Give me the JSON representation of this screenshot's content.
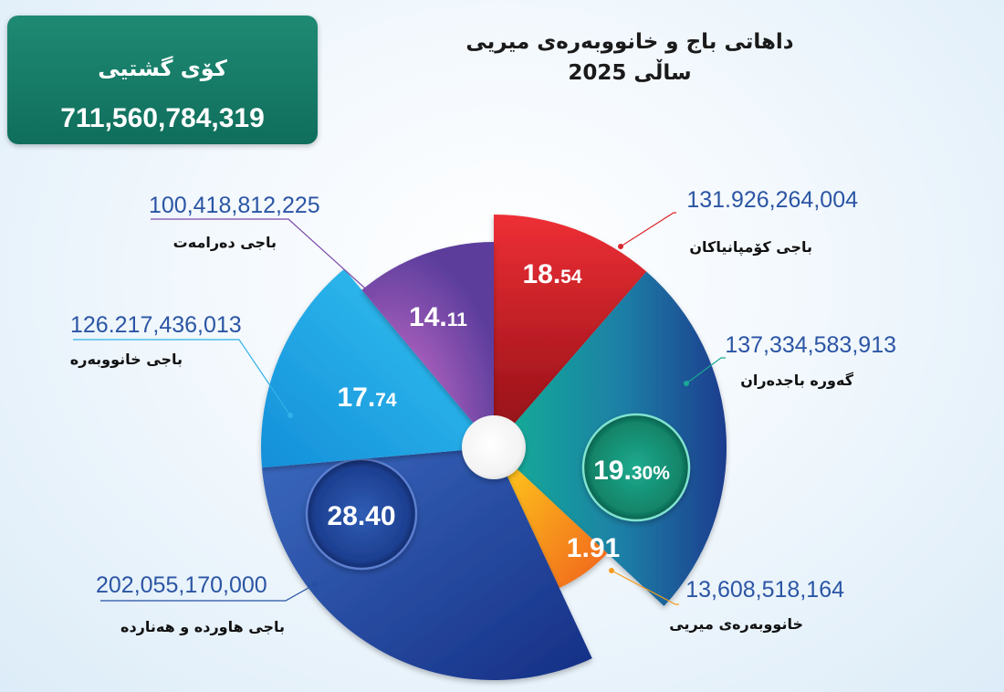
{
  "summary": {
    "total_label": "كۆی گشتیی",
    "total_value": "711,560,784,319"
  },
  "title": {
    "line1": "داهاتی باج و خانووبەرەی میریی",
    "line2": "ساڵی 2025"
  },
  "colors": {
    "total_box": "#137a65",
    "amount_text": "#2b55a4",
    "category_text": "#111111"
  },
  "chart_data": {
    "type": "pie",
    "title": "داهاتی باج و خانووبەرەی میریی ساڵی 2025",
    "total": "711,560,784,319",
    "slices": [
      {
        "key": "company",
        "label": "باجی کۆمپانیاکان",
        "amount": "131.926,264,004",
        "percent": 18.54,
        "percent_main": "18.",
        "percent_small": "54",
        "color": "#d9262c"
      },
      {
        "key": "large",
        "label": "گەورە باجدەران",
        "amount": "137,334,583,913",
        "percent": 19.3,
        "percent_main": "19.",
        "percent_small": "30%",
        "color": "#1aa894"
      },
      {
        "key": "govt",
        "label": "خانووبەرەی میریی",
        "amount": "13,608,518,164",
        "percent": 1.91,
        "percent_main": "1.91",
        "percent_small": "",
        "color": "#f59b1d"
      },
      {
        "key": "import",
        "label": "باجی هاوردە و هەناردە",
        "amount": "202,055,170,000",
        "percent": 28.4,
        "percent_main": "28.40",
        "percent_small": "",
        "color": "#2450a3"
      },
      {
        "key": "property",
        "label": "باجی خانووبەرە",
        "amount": "126.217,436,013",
        "percent": 17.74,
        "percent_main": "17.",
        "percent_small": "74",
        "color": "#2fb2e8"
      },
      {
        "key": "income",
        "label": "باجی دەرامەت",
        "amount": "100,418,812,225",
        "percent": 14.11,
        "percent_main": "14.",
        "percent_small": "11",
        "color": "#7b4aa6"
      }
    ]
  }
}
